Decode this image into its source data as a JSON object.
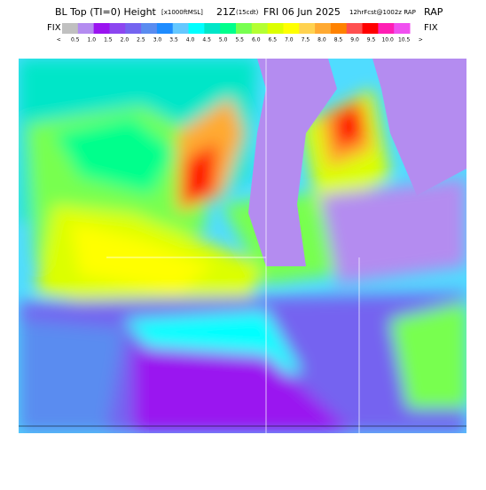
{
  "header": {
    "title": "BL Top (TI=0) Height",
    "units": "[x1000ftMSL]",
    "valid": "21Z",
    "local": "(15cdt)",
    "date": "FRI 06 Jun 2025",
    "forecast": "12hrFcst@1002z RAP",
    "fix_left": "FIX",
    "fix_right": "FIX"
  },
  "legend": {
    "labels": [
      "<",
      "0.5",
      "1.0",
      "1.5",
      "2.0",
      "2.5",
      "3.0",
      "3.5",
      "4.0",
      "4.5",
      "5.0",
      "5.5",
      "6.0",
      "6.5",
      "7.0",
      "7.5",
      "8.0",
      "8.5",
      "9.0",
      "9.5",
      "10.0",
      "10.5",
      ">"
    ],
    "colors": [
      "#c0c0c0",
      "#b48cf0",
      "#9a14f0",
      "#8c46f0",
      "#7464f0",
      "#5a8cf0",
      "#1e8cff",
      "#64c8ff",
      "#00ffff",
      "#00e6c8",
      "#00ff8c",
      "#78ff50",
      "#b4ff32",
      "#dcff00",
      "#ffff00",
      "#ffd250",
      "#ffaa32",
      "#ff8200",
      "#ff5050",
      "#ff0000",
      "#ff1eb4",
      "#f050f0"
    ]
  }
}
